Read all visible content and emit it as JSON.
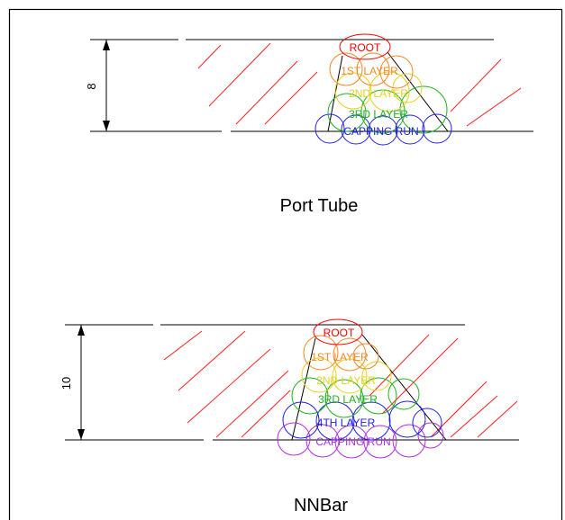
{
  "colors": {
    "frame": "#000000",
    "line": "#000000",
    "hatch": "#ff2020",
    "root": "#ff0000",
    "layer1": "#f08a24",
    "layer2": "#e6d21e",
    "layer3": "#22b020",
    "layer4": "#2020ee",
    "capping_nnbar": "#b030e0",
    "capping_port": "#2020ee"
  },
  "port_tube": {
    "caption": "Port Tube",
    "thickness_label": "8",
    "passes": [
      {
        "label": "ROOT",
        "color_key": "root"
      },
      {
        "label": "1ST LAYER",
        "color_key": "layer1"
      },
      {
        "label": "2ND LAYER",
        "color_key": "layer2"
      },
      {
        "label": "3RD LAYER",
        "color_key": "layer3"
      },
      {
        "label": "CAPPING RUN",
        "color_key": "capping_port"
      }
    ]
  },
  "nnbar": {
    "caption": "NNBar",
    "thickness_label": "10",
    "passes": [
      {
        "label": "ROOT",
        "color_key": "root"
      },
      {
        "label": "1ST LAYER",
        "color_key": "layer1"
      },
      {
        "label": "2ND LAYER",
        "color_key": "layer2"
      },
      {
        "label": "3RD LAYER",
        "color_key": "layer3"
      },
      {
        "label": "4TH LAYER",
        "color_key": "layer4"
      },
      {
        "label": "CAPPING RUN",
        "color_key": "capping_nnbar"
      }
    ]
  }
}
